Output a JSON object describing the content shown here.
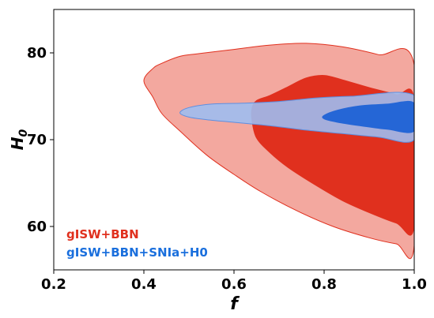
{
  "chart_data": {
    "type": "contour",
    "title": "",
    "xlabel": "f",
    "ylabel": "H0",
    "xlim": [
      0.2,
      1.0
    ],
    "ylim": [
      55,
      85
    ],
    "xticks": [
      0.2,
      0.4,
      0.6,
      0.8,
      1.0
    ],
    "xtick_labels": [
      "0.2",
      "0.4",
      "0.6",
      "0.8",
      "1.0"
    ],
    "yticks": [
      60,
      70,
      80
    ],
    "ytick_labels": [
      "60",
      "70",
      "80"
    ],
    "grid": false,
    "legend_position": "bottom-left",
    "series": [
      {
        "name": "gISW+BBN",
        "color": "#e0301e",
        "contours": [
          {
            "level": "95%",
            "fill": "#f3a89f",
            "stroke": "#e0301e",
            "points": [
              [
                0.44,
                78.8
              ],
              [
                0.48,
                79.6
              ],
              [
                0.52,
                79.9
              ],
              [
                0.6,
                80.4
              ],
              [
                0.68,
                80.9
              ],
              [
                0.76,
                81.1
              ],
              [
                0.84,
                80.7
              ],
              [
                0.92,
                79.8
              ],
              [
                1.0,
                78.6
              ],
              [
                1.0,
                57.8
              ],
              [
                0.96,
                58.0
              ],
              [
                0.9,
                58.7
              ],
              [
                0.82,
                60.0
              ],
              [
                0.74,
                61.8
              ],
              [
                0.66,
                64.0
              ],
              [
                0.6,
                66.0
              ],
              [
                0.54,
                68.2
              ],
              [
                0.48,
                71.0
              ],
              [
                0.44,
                73.0
              ],
              [
                0.42,
                74.9
              ],
              [
                0.4,
                76.8
              ],
              [
                0.42,
                78.2
              ]
            ]
          },
          {
            "level": "68%",
            "fill": "#e0301e",
            "stroke": "#e0301e",
            "points": [
              [
                0.65,
                74.5
              ],
              [
                0.68,
                75.1
              ],
              [
                0.72,
                76.1
              ],
              [
                0.76,
                77.1
              ],
              [
                0.8,
                77.4
              ],
              [
                0.84,
                76.9
              ],
              [
                0.9,
                76.0
              ],
              [
                0.96,
                75.2
              ],
              [
                1.0,
                74.6
              ],
              [
                1.0,
                60.0
              ],
              [
                0.96,
                60.4
              ],
              [
                0.9,
                61.6
              ],
              [
                0.84,
                63.0
              ],
              [
                0.78,
                64.8
              ],
              [
                0.72,
                66.8
              ],
              [
                0.68,
                68.5
              ],
              [
                0.65,
                70.2
              ],
              [
                0.64,
                72.2
              ],
              [
                0.64,
                73.6
              ]
            ]
          }
        ]
      },
      {
        "name": "gISW+BBN+SNIa+H0",
        "color": "#1f66d1",
        "contours": [
          {
            "level": "95%",
            "fill": "#9fbdef",
            "stroke": "#5e8fe0",
            "points": [
              [
                0.48,
                73.1
              ],
              [
                0.5,
                73.7
              ],
              [
                0.55,
                74.1
              ],
              [
                0.62,
                74.2
              ],
              [
                0.7,
                74.4
              ],
              [
                0.78,
                74.8
              ],
              [
                0.86,
                75.0
              ],
              [
                1.0,
                75.1
              ],
              [
                1.0,
                70.0
              ],
              [
                0.92,
                70.3
              ],
              [
                0.84,
                70.7
              ],
              [
                0.76,
                71.1
              ],
              [
                0.68,
                71.6
              ],
              [
                0.6,
                72.0
              ],
              [
                0.54,
                72.3
              ],
              [
                0.5,
                72.6
              ]
            ]
          },
          {
            "level": "68%",
            "fill": "#2566d6",
            "stroke": "#2566d6",
            "points": [
              [
                0.8,
                72.8
              ],
              [
                0.83,
                73.4
              ],
              [
                0.88,
                73.9
              ],
              [
                0.94,
                74.1
              ],
              [
                1.0,
                74.2
              ],
              [
                1.0,
                71.0
              ],
              [
                0.94,
                71.2
              ],
              [
                0.88,
                71.6
              ],
              [
                0.83,
                72.0
              ],
              [
                0.8,
                72.4
              ]
            ]
          }
        ]
      }
    ]
  }
}
